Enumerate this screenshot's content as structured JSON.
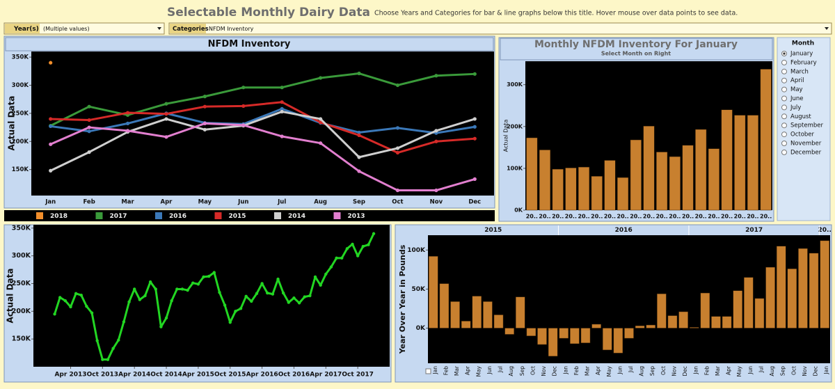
{
  "header": {
    "title": "Selectable Monthly Dairy Data",
    "subtitle": "Choose Years and Categories for bar & line graphs below this title. Hover mouse over data points to see data."
  },
  "filters": [
    {
      "label": "Year(s)",
      "value": "(Multiple values)"
    },
    {
      "label": "Categories",
      "value": "NFDM Inventory"
    }
  ],
  "month_selector": {
    "title": "Month",
    "options": [
      "January",
      "February",
      "March",
      "April",
      "May",
      "June",
      "July",
      "August",
      "September",
      "October",
      "November",
      "December"
    ],
    "selected": "January"
  },
  "chart_data": [
    {
      "type": "line",
      "title": "NFDM Inventory",
      "y_label": "Actual Data",
      "categories": [
        "Jan",
        "Feb",
        "Mar",
        "Apr",
        "May",
        "Jun",
        "Jul",
        "Aug",
        "Sep",
        "Oct",
        "Nov",
        "Dec"
      ],
      "series": [
        {
          "name": "2018",
          "color": "#f28e2b",
          "values": [
            340000,
            null,
            null,
            null,
            null,
            null,
            null,
            null,
            null,
            null,
            null,
            null
          ]
        },
        {
          "name": "2017",
          "color": "#3a9a3a",
          "values": [
            228000,
            262000,
            247000,
            267000,
            280000,
            296000,
            296000,
            313000,
            321000,
            300000,
            317000,
            320000
          ]
        },
        {
          "name": "2016",
          "color": "#3b78b8",
          "values": [
            227000,
            218000,
            232000,
            250000,
            233000,
            231000,
            258000,
            233000,
            216000,
            224000,
            215000,
            226000
          ]
        },
        {
          "name": "2015",
          "color": "#d62a28",
          "values": [
            240000,
            238000,
            251000,
            249000,
            262000,
            263000,
            270000,
            234000,
            211000,
            180000,
            200000,
            205000
          ]
        },
        {
          "name": "2014",
          "color": "#cfcfcf",
          "values": [
            148000,
            181000,
            217000,
            240000,
            221000,
            228000,
            253000,
            240000,
            172000,
            188000,
            219000,
            240000
          ]
        },
        {
          "name": "2013",
          "color": "#e27fcf",
          "values": [
            195000,
            225000,
            219000,
            208000,
            232000,
            229000,
            209000,
            197000,
            147000,
            113000,
            113000,
            133000
          ]
        }
      ],
      "ylim": [
        105000,
        360000
      ],
      "yticks": [
        {
          "value": 150000,
          "label": "150K"
        },
        {
          "value": 200000,
          "label": "200K"
        },
        {
          "value": 250000,
          "label": "250K"
        },
        {
          "value": 300000,
          "label": "300K"
        },
        {
          "value": 350000,
          "label": "350K"
        }
      ],
      "legend": "bottom"
    },
    {
      "type": "bar",
      "title": "Monthly NFDM Inventory For January",
      "subtitle": "Select Month on Right",
      "y_label": "Actual Data",
      "categories": [
        "20..",
        "20..",
        "20..",
        "20..",
        "20..",
        "20..",
        "20..",
        "20..",
        "20..",
        "20..",
        "20..",
        "20..",
        "20..",
        "20..",
        "20..",
        "20..",
        "20..",
        "20..",
        "20.."
      ],
      "values": [
        173000,
        144000,
        98000,
        101000,
        103000,
        81000,
        119000,
        78000,
        168000,
        201000,
        139000,
        128000,
        155000,
        193000,
        147000,
        240000,
        227000,
        227000,
        337000
      ],
      "color": "#c8802f",
      "ylim": [
        0,
        356000
      ],
      "yticks": [
        {
          "value": 0,
          "label": "0K"
        },
        {
          "value": 100000,
          "label": "100K"
        },
        {
          "value": 200000,
          "label": "200K"
        },
        {
          "value": 300000,
          "label": "300K"
        }
      ]
    },
    {
      "type": "line",
      "y_label": "Actual Data",
      "x": [
        "2013-01",
        "2013-02",
        "2013-03",
        "2013-04",
        "2013-05",
        "2013-06",
        "2013-07",
        "2013-08",
        "2013-09",
        "2013-10",
        "2013-11",
        "2013-12",
        "2014-01",
        "2014-02",
        "2014-03",
        "2014-04",
        "2014-05",
        "2014-06",
        "2014-07",
        "2014-08",
        "2014-09",
        "2014-10",
        "2014-11",
        "2014-12",
        "2015-01",
        "2015-02",
        "2015-03",
        "2015-04",
        "2015-05",
        "2015-06",
        "2015-07",
        "2015-08",
        "2015-09",
        "2015-10",
        "2015-11",
        "2015-12",
        "2016-01",
        "2016-02",
        "2016-03",
        "2016-04",
        "2016-05",
        "2016-06",
        "2016-07",
        "2016-08",
        "2016-09",
        "2016-10",
        "2016-11",
        "2016-12",
        "2017-01",
        "2017-02",
        "2017-03",
        "2017-04",
        "2017-05",
        "2017-06",
        "2017-07",
        "2017-08",
        "2017-09",
        "2017-10",
        "2017-11",
        "2017-12",
        "2018-01"
      ],
      "values": [
        195000,
        225000,
        219000,
        208000,
        232000,
        229000,
        209000,
        197000,
        147000,
        113000,
        113000,
        133000,
        148000,
        181000,
        217000,
        240000,
        221000,
        228000,
        253000,
        240000,
        172000,
        188000,
        219000,
        240000,
        240000,
        238000,
        251000,
        249000,
        262000,
        263000,
        270000,
        234000,
        211000,
        180000,
        200000,
        205000,
        227000,
        218000,
        232000,
        250000,
        233000,
        231000,
        258000,
        233000,
        216000,
        224000,
        215000,
        226000,
        228000,
        262000,
        247000,
        267000,
        280000,
        296000,
        296000,
        313000,
        321000,
        300000,
        317000,
        320000,
        340000
      ],
      "color": "#22d622",
      "xlim": [
        "2012-09",
        "2018-04"
      ],
      "xticks": [
        {
          "value": "2013-04",
          "label": "Apr 2013"
        },
        {
          "value": "2013-10",
          "label": "Oct 2013"
        },
        {
          "value": "2014-04",
          "label": "Apr 2014"
        },
        {
          "value": "2014-10",
          "label": "Oct 2014"
        },
        {
          "value": "2015-04",
          "label": "Apr 2015"
        },
        {
          "value": "2015-10",
          "label": "Oct 2015"
        },
        {
          "value": "2016-04",
          "label": "Apr 2016"
        },
        {
          "value": "2016-10",
          "label": "Oct 2016"
        },
        {
          "value": "2017-04",
          "label": "Apr 2017"
        },
        {
          "value": "2017-10",
          "label": "Oct 2017"
        }
      ],
      "ylim": [
        100000,
        356000
      ],
      "yticks": [
        {
          "value": 150000,
          "label": "150K"
        },
        {
          "value": 200000,
          "label": "200K"
        },
        {
          "value": 250000,
          "label": "250K"
        },
        {
          "value": 300000,
          "label": "300K"
        },
        {
          "value": 350000,
          "label": "350K"
        }
      ]
    },
    {
      "type": "bar",
      "y_label": "Year Over Year in Pounds",
      "groups": [
        {
          "name": "2015",
          "categories": [
            "Jan",
            "Feb",
            "Mar",
            "Apr",
            "May",
            "Jun",
            "Jul",
            "Aug",
            "Sep",
            "Oct",
            "Nov",
            "Dec"
          ],
          "values": [
            92000,
            57000,
            34000,
            9000,
            41000,
            34000,
            17000,
            -8000,
            40000,
            -10000,
            -21000,
            -36000
          ]
        },
        {
          "name": "2016",
          "categories": [
            "Jan",
            "Feb",
            "Mar",
            "Apr",
            "May",
            "Jun",
            "Jul",
            "Aug",
            "Sep",
            "Oct",
            "Nov",
            "Dec"
          ],
          "values": [
            -13000,
            -20000,
            -19000,
            5000,
            -28000,
            -32000,
            -13000,
            3000,
            4000,
            44000,
            16000,
            21000
          ]
        },
        {
          "name": "2017",
          "categories": [
            "Jan",
            "Feb",
            "Mar",
            "Apr",
            "May",
            "Jun",
            "Jul",
            "Aug",
            "Sep",
            "Oct",
            "Nov",
            "Dec"
          ],
          "values": [
            1000,
            45000,
            15000,
            15000,
            48000,
            65000,
            38000,
            78000,
            105000,
            76000,
            102000,
            96000
          ]
        },
        {
          "name": "20..",
          "categories": [
            "Jan"
          ],
          "values": [
            112000
          ]
        }
      ],
      "color": "#c8802f",
      "ylim": [
        -45000,
        119000
      ],
      "yticks": [
        {
          "value": 0,
          "label": "0K"
        },
        {
          "value": 50000,
          "label": "50K"
        },
        {
          "value": 100000,
          "label": "100K"
        }
      ]
    }
  ]
}
